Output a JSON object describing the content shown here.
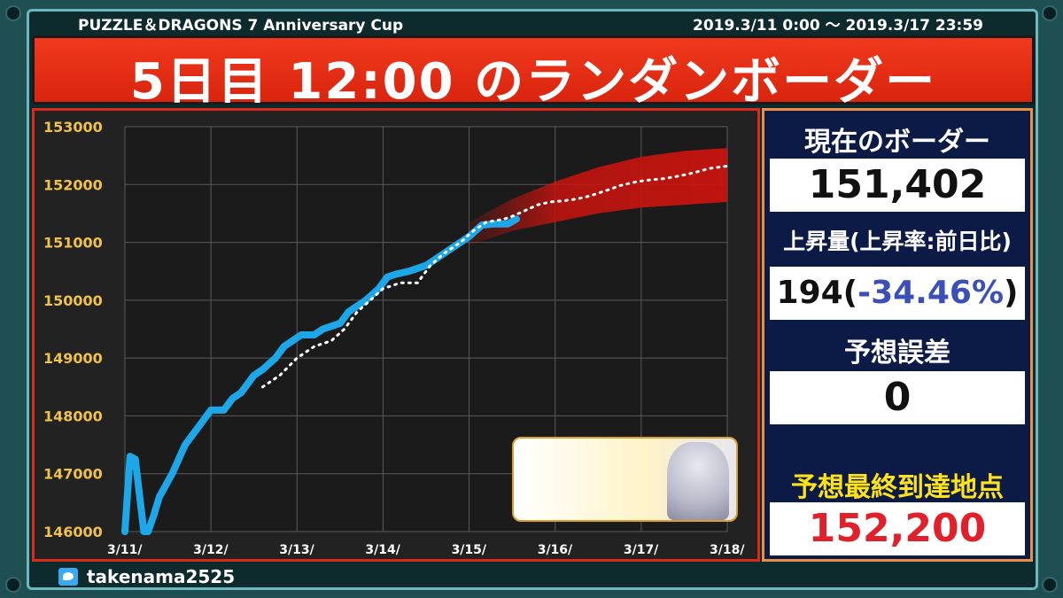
{
  "header": {
    "event": "PUZZLE＆DRAGONS  7 Anniversary Cup",
    "period": "2019.3/11 0:00  ～ 2019.3/17 23:59"
  },
  "title": "5日目 12:00 のランダンボーダー",
  "panel": {
    "current_label": "現在のボーダー",
    "current_value": "151,402",
    "increase_label": "上昇量(上昇率:前日比)",
    "increase_amount": "194(",
    "increase_rate": "-34.46%",
    "increase_close": ")",
    "error_label": "予想誤差",
    "error_value": "0",
    "final_label": "予想最終到達地点",
    "final_value": "152,200"
  },
  "footer": {
    "handle": "takenama2525"
  },
  "colors": {
    "actual_line": "#1ea7e8",
    "forecast_band": "#c8140e",
    "title_bg": "#e8301a",
    "final_value": "#e0202a",
    "rate_value": "#3a4fb8"
  },
  "chart_data": {
    "type": "line",
    "title": "",
    "xlabel": "",
    "ylabel": "",
    "x_ticks": [
      "3/11/",
      "3/12/",
      "3/13/",
      "3/14/",
      "3/15/",
      "3/16/",
      "3/17/",
      "3/18/"
    ],
    "xlim": [
      0,
      7
    ],
    "ylim": [
      146000,
      153000
    ],
    "y_ticks": [
      "153000",
      "152000",
      "151000",
      "150000",
      "149000",
      "148000",
      "147000",
      "146000"
    ],
    "grid": true,
    "series": [
      {
        "role": "actual",
        "x": [
          0.0,
          0.06,
          0.12,
          0.22,
          0.27,
          0.34,
          0.4,
          0.55,
          0.7,
          0.85,
          0.95,
          1.0,
          1.15,
          1.25,
          1.35,
          1.5,
          1.6,
          1.75,
          1.85,
          1.95,
          2.05,
          2.2,
          2.3,
          2.5,
          2.6,
          2.7,
          2.8,
          2.95,
          3.05,
          3.15,
          3.3,
          3.5,
          3.6,
          3.8,
          4.0,
          4.15,
          4.3,
          4.45,
          4.55
        ],
        "y": [
          146000,
          147300,
          147250,
          146000,
          146000,
          146300,
          146600,
          147000,
          147500,
          147800,
          148000,
          148100,
          148100,
          148300,
          148400,
          148700,
          148800,
          149000,
          149200,
          149300,
          149400,
          149400,
          149500,
          149600,
          149800,
          149900,
          150000,
          150200,
          150400,
          150450,
          150500,
          150600,
          150700,
          150900,
          151100,
          151300,
          151320,
          151320,
          151402
        ]
      },
      {
        "role": "forecast",
        "x": [
          1.6,
          1.8,
          2.0,
          2.2,
          2.4,
          2.55,
          2.7,
          2.85,
          3.0,
          3.2,
          3.4,
          3.45,
          3.55,
          3.7,
          3.9,
          4.05,
          4.2,
          4.4,
          4.5,
          4.65,
          4.8,
          4.95,
          5.1,
          5.25,
          5.4,
          5.6,
          5.75,
          5.95,
          6.1,
          6.25,
          6.45,
          6.6,
          6.8,
          7.0
        ],
        "y": [
          148500,
          148700,
          149000,
          149200,
          149300,
          149500,
          149800,
          150000,
          150200,
          150300,
          150300,
          150400,
          150600,
          150800,
          151000,
          151200,
          151350,
          151400,
          151450,
          151550,
          151650,
          151700,
          151720,
          151750,
          151800,
          151900,
          151980,
          152050,
          152080,
          152100,
          152150,
          152200,
          152280,
          152320
        ]
      }
    ],
    "band": {
      "x": [
        4.0,
        4.5,
        5.0,
        5.5,
        6.0,
        6.5,
        7.0
      ],
      "upper": [
        151350,
        151750,
        152050,
        152300,
        152480,
        152580,
        152630
      ],
      "lower": [
        150950,
        151200,
        151350,
        151500,
        151600,
        151650,
        151700
      ]
    }
  }
}
